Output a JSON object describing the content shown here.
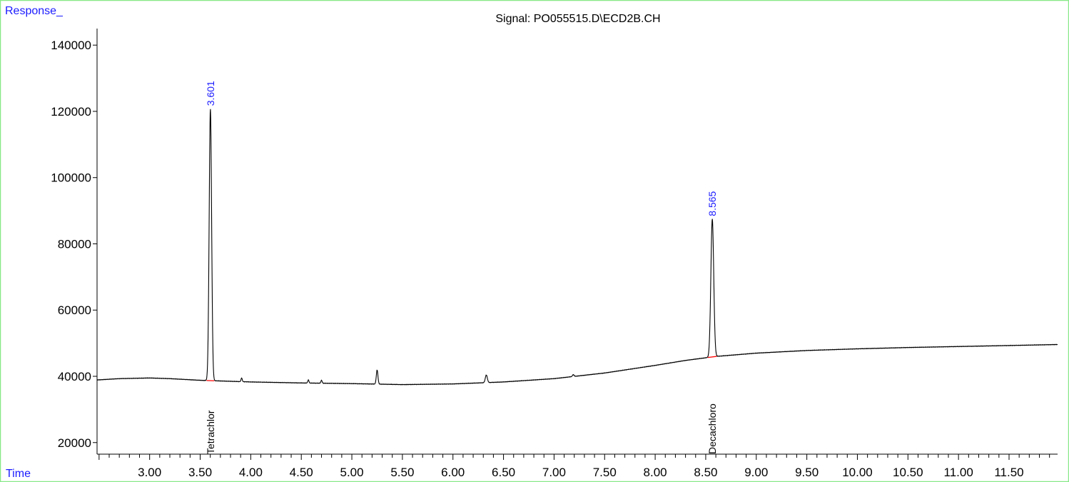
{
  "chart_data": {
    "type": "line",
    "title": "Signal: PO055515.D\\ECD2B.CH",
    "ylabel": "Response_",
    "xlabel": "Time",
    "xlim": [
      2.48,
      11.98
    ],
    "ylim": [
      16500,
      145000
    ],
    "x_ticks_major": [
      "3.00",
      "3.50",
      "4.00",
      "4.50",
      "5.00",
      "5.50",
      "6.00",
      "6.50",
      "7.00",
      "7.50",
      "8.00",
      "8.50",
      "9.00",
      "9.50",
      "10.00",
      "10.50",
      "11.00",
      "11.50"
    ],
    "y_ticks": [
      "20000",
      "40000",
      "60000",
      "80000",
      "100000",
      "120000",
      "140000"
    ],
    "baseline": [
      [
        2.48,
        38900
      ],
      [
        2.7,
        39300
      ],
      [
        3.0,
        39500
      ],
      [
        3.2,
        39300
      ],
      [
        3.5,
        38800
      ],
      [
        4.0,
        38300
      ],
      [
        4.5,
        38000
      ],
      [
        5.0,
        37800
      ],
      [
        5.5,
        37500
      ],
      [
        6.0,
        37700
      ],
      [
        6.5,
        38300
      ],
      [
        7.0,
        39300
      ],
      [
        7.5,
        41000
      ],
      [
        8.0,
        43300
      ],
      [
        8.3,
        44800
      ],
      [
        8.6,
        46000
      ],
      [
        9.0,
        47000
      ],
      [
        9.5,
        47800
      ],
      [
        10.0,
        48300
      ],
      [
        10.5,
        48700
      ],
      [
        11.0,
        49000
      ],
      [
        11.5,
        49300
      ],
      [
        11.98,
        49600
      ]
    ],
    "peaks": [
      {
        "rt": 3.601,
        "label": "3.601",
        "height": 120800,
        "width": 0.012,
        "compound": "Tetrachlor",
        "integrated": true
      },
      {
        "rt": 8.565,
        "label": "8.565",
        "height": 87500,
        "width": 0.014,
        "compound": "Decachloro",
        "integrated": true
      },
      {
        "rt": 3.91,
        "height": 39500,
        "width": 0.006
      },
      {
        "rt": 4.57,
        "height": 38900,
        "width": 0.006
      },
      {
        "rt": 4.7,
        "height": 38800,
        "width": 0.006
      },
      {
        "rt": 5.25,
        "height": 41900,
        "width": 0.008
      },
      {
        "rt": 6.33,
        "height": 40400,
        "width": 0.01
      },
      {
        "rt": 7.19,
        "height": 40500,
        "width": 0.008
      }
    ],
    "colors": {
      "trace": "#000000",
      "rt_label": "#1a1aff",
      "integration": "#ff0000",
      "frame": "#88e888"
    }
  }
}
